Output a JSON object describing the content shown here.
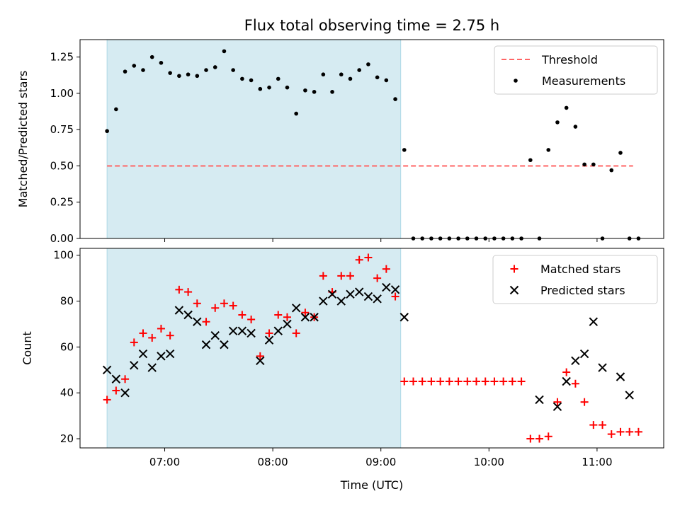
{
  "title": "Flux total observing time = 2.75 h",
  "colors": {
    "shade": "#add8e6",
    "threshold": "#ff6666",
    "matched": "#ff0000",
    "predicted": "#000000",
    "measurements": "#000000"
  },
  "chart_data": [
    {
      "type": "scatter",
      "title": "Flux total observing time = 2.75 h",
      "xlabel": "",
      "ylabel": "Matched/Predicted stars",
      "xlim": [
        "06:13",
        "11:37"
      ],
      "ylim": [
        0,
        1.37
      ],
      "yticks": [
        "0.00",
        "0.25",
        "0.50",
        "0.75",
        "1.00",
        "1.25"
      ],
      "shaded_interval": [
        "06:28",
        "09:11"
      ],
      "threshold": {
        "name": "Threshold",
        "value": 0.5,
        "x_from": "06:28",
        "x_to": "11:20",
        "style": "dashed"
      },
      "legend": {
        "placement": "top-right",
        "entries": [
          "Threshold",
          "Measurements"
        ]
      },
      "series": [
        {
          "name": "Measurements",
          "marker": "dot",
          "x": [
            "06:28",
            "06:33",
            "06:38",
            "06:43",
            "06:48",
            "06:53",
            "06:58",
            "07:03",
            "07:08",
            "07:13",
            "07:18",
            "07:23",
            "07:28",
            "07:33",
            "07:38",
            "07:43",
            "07:48",
            "07:53",
            "07:58",
            "08:03",
            "08:08",
            "08:13",
            "08:18",
            "08:23",
            "08:28",
            "08:33",
            "08:38",
            "08:43",
            "08:48",
            "08:53",
            "08:58",
            "09:03",
            "09:08",
            "09:13",
            "09:18",
            "09:23",
            "09:28",
            "09:33",
            "09:38",
            "09:43",
            "09:48",
            "09:53",
            "09:58",
            "10:03",
            "10:08",
            "10:13",
            "10:18",
            "10:23",
            "10:28",
            "10:33",
            "10:38",
            "10:43",
            "10:48",
            "10:53",
            "10:58",
            "11:03",
            "11:08",
            "11:13",
            "11:18",
            "11:23"
          ],
          "y": [
            0.74,
            0.89,
            1.15,
            1.19,
            1.16,
            1.25,
            1.21,
            1.14,
            1.12,
            1.13,
            1.12,
            1.16,
            1.18,
            1.29,
            1.16,
            1.1,
            1.09,
            1.03,
            1.04,
            1.1,
            1.04,
            0.86,
            1.02,
            1.01,
            1.13,
            1.01,
            1.13,
            1.1,
            1.16,
            1.2,
            1.11,
            1.09,
            0.96,
            0.61,
            0,
            0,
            0,
            0,
            0,
            0,
            0,
            0,
            0,
            0,
            0,
            0,
            0,
            0.54,
            0,
            0.61,
            0.8,
            0.9,
            0.77,
            0.51,
            0.51,
            0,
            0.47,
            0.59,
            0,
            0
          ]
        }
      ]
    },
    {
      "type": "scatter",
      "xlabel": "Time (UTC)",
      "ylabel": "Count",
      "xlim": [
        "06:13",
        "11:37"
      ],
      "ylim": [
        16,
        103
      ],
      "xticks": [
        "07:00",
        "08:00",
        "09:00",
        "10:00",
        "11:00"
      ],
      "yticks": [
        "20",
        "40",
        "60",
        "80",
        "100"
      ],
      "shaded_interval": [
        "06:28",
        "09:11"
      ],
      "legend": {
        "placement": "top-right",
        "entries": [
          "Matched stars",
          "Predicted stars"
        ]
      },
      "series": [
        {
          "name": "Matched stars",
          "marker": "plus",
          "x": [
            "06:28",
            "06:33",
            "06:38",
            "06:43",
            "06:48",
            "06:53",
            "06:58",
            "07:03",
            "07:08",
            "07:13",
            "07:18",
            "07:23",
            "07:28",
            "07:33",
            "07:38",
            "07:43",
            "07:48",
            "07:53",
            "07:58",
            "08:03",
            "08:08",
            "08:13",
            "08:18",
            "08:23",
            "08:28",
            "08:33",
            "08:38",
            "08:43",
            "08:48",
            "08:53",
            "08:58",
            "09:03",
            "09:08",
            "09:13",
            "09:18",
            "09:23",
            "09:28",
            "09:33",
            "09:38",
            "09:43",
            "09:48",
            "09:53",
            "09:58",
            "10:03",
            "10:08",
            "10:13",
            "10:18",
            "10:23",
            "10:28",
            "10:33",
            "10:38",
            "10:43",
            "10:48",
            "10:53",
            "10:58",
            "11:03",
            "11:08",
            "11:13",
            "11:18",
            "11:23"
          ],
          "y": [
            37,
            41,
            46,
            62,
            66,
            64,
            68,
            65,
            85,
            84,
            79,
            71,
            77,
            79,
            78,
            74,
            72,
            56,
            66,
            74,
            73,
            66,
            75,
            73,
            91,
            84,
            91,
            91,
            98,
            99,
            90,
            94,
            82,
            45,
            45,
            45,
            45,
            45,
            45,
            45,
            45,
            45,
            45,
            45,
            45,
            45,
            45,
            20,
            20,
            21,
            36,
            49,
            44,
            36,
            26,
            26,
            22,
            23,
            23,
            23
          ],
          "note_x_last": "11:23 repeated point shown at 11:23"
        },
        {
          "name": "Predicted stars",
          "marker": "x",
          "x": [
            "06:28",
            "06:33",
            "06:38",
            "06:43",
            "06:48",
            "06:53",
            "06:58",
            "07:03",
            "07:08",
            "07:13",
            "07:18",
            "07:23",
            "07:28",
            "07:33",
            "07:38",
            "07:43",
            "07:48",
            "07:53",
            "07:58",
            "08:03",
            "08:08",
            "08:13",
            "08:18",
            "08:23",
            "08:28",
            "08:33",
            "08:38",
            "08:43",
            "08:48",
            "08:53",
            "08:58",
            "09:03",
            "09:08",
            "09:13",
            "10:28",
            "10:38",
            "10:43",
            "10:48",
            "10:53",
            "10:58",
            "11:03",
            "11:13",
            "11:18"
          ],
          "y": [
            50,
            46,
            40,
            52,
            57,
            51,
            56,
            57,
            76,
            74,
            71,
            61,
            65,
            61,
            67,
            67,
            66,
            54,
            63,
            67,
            70,
            77,
            73,
            73,
            80,
            83,
            80,
            83,
            84,
            82,
            81,
            86,
            85,
            73,
            37,
            34,
            45,
            54,
            57,
            71,
            51,
            47,
            39
          ]
        }
      ]
    }
  ]
}
